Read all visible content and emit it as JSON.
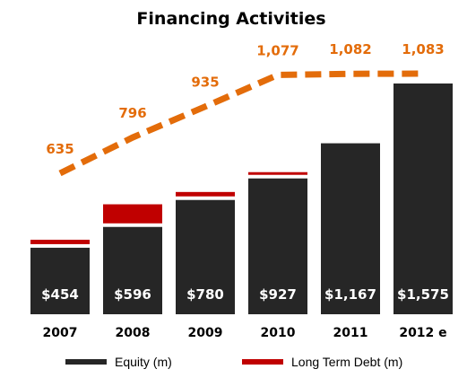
{
  "chart_data": {
    "type": "bar",
    "title": "Financing Activities",
    "categories": [
      "2007",
      "2008",
      "2009",
      "2010",
      "2011",
      "2012 e"
    ],
    "series": [
      {
        "name": "Equity (m)",
        "kind": "bar",
        "color": "#262626",
        "values": [
          454,
          596,
          780,
          927,
          1167,
          1575
        ],
        "labels": [
          "$454",
          "$596",
          "$780",
          "$927",
          "$1,167",
          "$1,575"
        ]
      },
      {
        "name": "Long Term Debt (m)",
        "kind": "bar",
        "color": "#c00000",
        "values": [
          30,
          130,
          30,
          15,
          0,
          0
        ]
      },
      {
        "kind": "line",
        "style": "dashed",
        "color": "#e36c0a",
        "values": [
          635,
          796,
          935,
          1077,
          1082,
          1083
        ],
        "labels": [
          "635",
          "796",
          "935",
          "1,077",
          "1,082",
          "1,083"
        ]
      }
    ],
    "legend": {
      "placement": "bottom"
    },
    "grid": false
  }
}
